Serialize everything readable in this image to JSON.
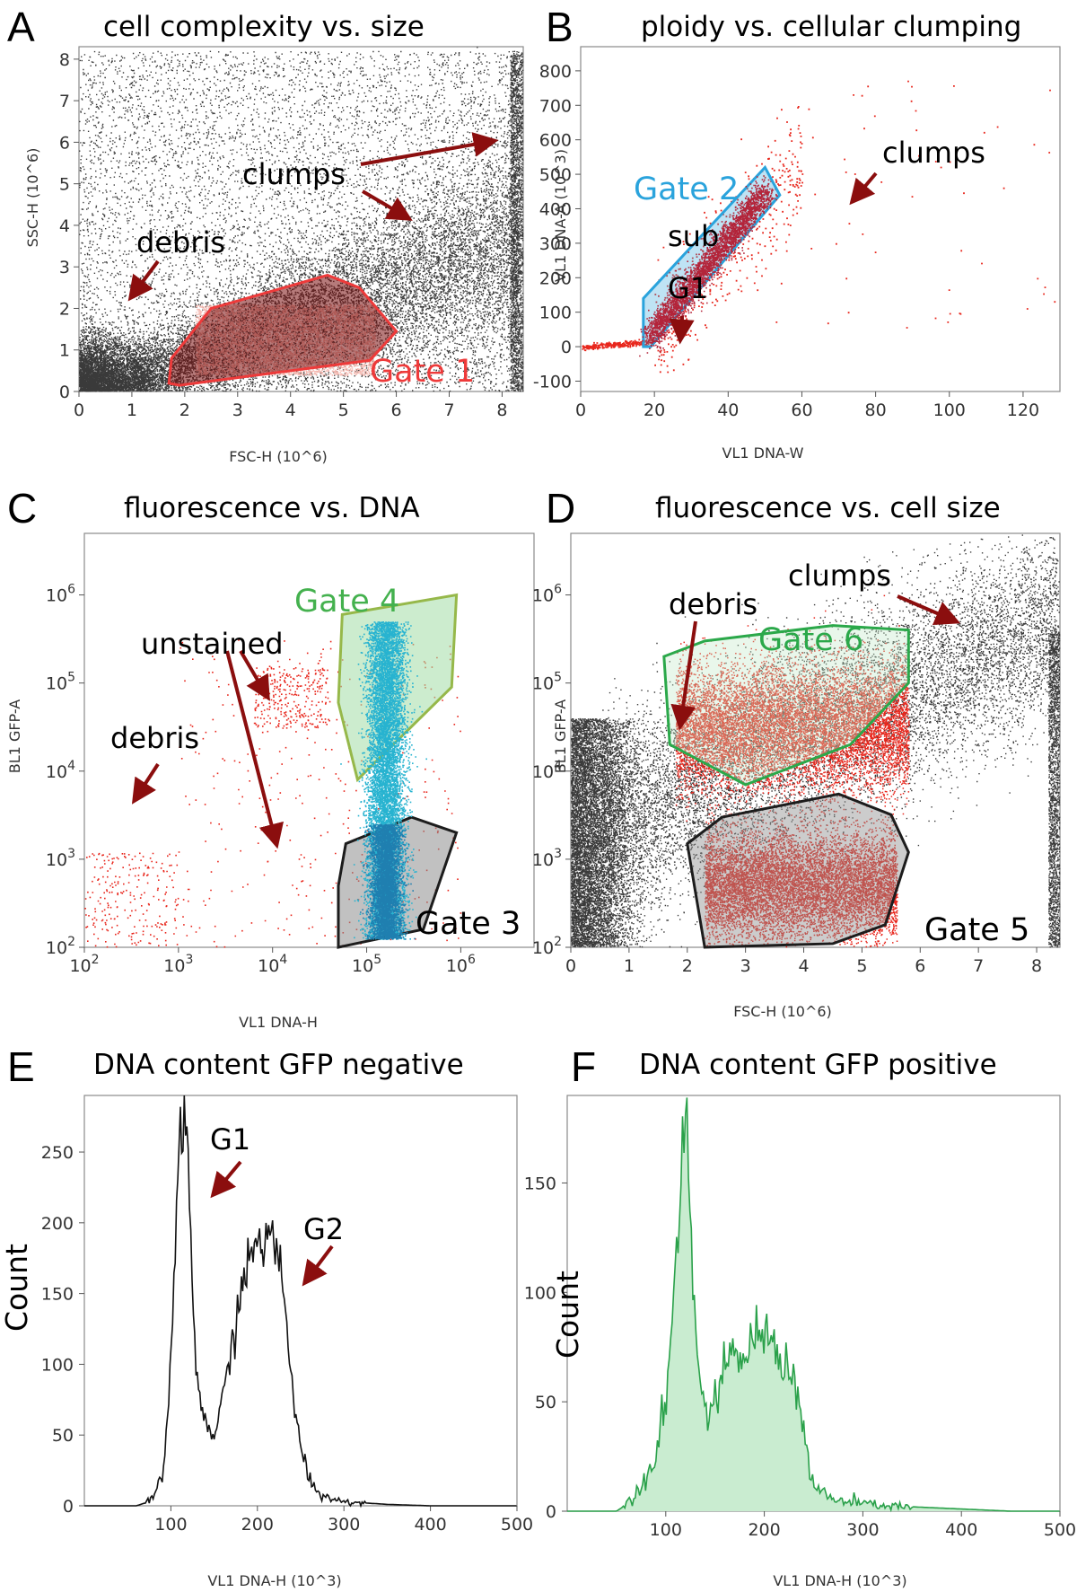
{
  "colors": {
    "dots": "#3a3a3a",
    "red_dots": "#e8261c",
    "gate1": "#ee3a3a",
    "gate2": "#2aa3dc",
    "gate3": "#1c1c1c",
    "gate4": "#96b84a",
    "gate4_text": "#44b14e",
    "gate6": "#2ba84a",
    "cyan_dots": "#27b3d0",
    "arrow": "#8b0e0e",
    "hist_black": "#111111",
    "hist_green": "#2aa14a",
    "hist_green_fill": "#c9ecd0"
  },
  "chart_data": [
    {
      "id": "A",
      "type": "scatter",
      "letter": "A",
      "title": "cell complexity vs. size",
      "xlabel": "FSC-H (10^6)",
      "ylabel": "SSC-H (10^6)",
      "xlim": [
        0,
        8.4
      ],
      "ylim": [
        0,
        8.3
      ],
      "x_ticks": [
        "0",
        "1",
        "2",
        "3",
        "4",
        "5",
        "6",
        "7",
        "8"
      ],
      "y_ticks": [
        "0",
        "1",
        "2",
        "3",
        "4",
        "5",
        "6",
        "7",
        "8"
      ],
      "annotations": [
        "debris",
        "clumps"
      ],
      "gates": [
        {
          "name": "Gate 1",
          "color": "gate1",
          "vertices": [
            [
              1.7,
              0.2
            ],
            [
              1.75,
              0.8
            ],
            [
              2.5,
              2.0
            ],
            [
              4.7,
              2.8
            ],
            [
              5.3,
              2.5
            ],
            [
              6.0,
              1.45
            ],
            [
              5.5,
              0.75
            ],
            [
              1.9,
              0.15
            ]
          ]
        }
      ]
    },
    {
      "id": "B",
      "type": "scatter",
      "letter": "B",
      "title": "ploidy vs. cellular clumping",
      "xlabel": "VL1 DNA-W",
      "ylabel": "VL1 DNA-A (10^3)",
      "xlim": [
        0,
        130
      ],
      "ylim": [
        -130,
        870
      ],
      "x_ticks": [
        "0",
        "20",
        "40",
        "60",
        "80",
        "100",
        "120"
      ],
      "y_ticks": [
        "-100",
        "0",
        "100",
        "200",
        "300",
        "400",
        "500",
        "600",
        "700",
        "800"
      ],
      "annotations": [
        "clumps",
        "sub",
        "G1"
      ],
      "gates": [
        {
          "name": "Gate 2",
          "color": "gate2",
          "vertices": [
            [
              17,
              0
            ],
            [
              17,
              140
            ],
            [
              50,
              520
            ],
            [
              54,
              440
            ],
            [
              19,
              0
            ]
          ]
        }
      ]
    },
    {
      "id": "C",
      "type": "scatter",
      "letter": "C",
      "title": "fluorescence vs. DNA",
      "xlabel": "VL1 DNA-H",
      "ylabel": "BL1 GFP-A",
      "x_scale": "log",
      "y_scale": "log",
      "xlim": [
        100,
        6000000
      ],
      "ylim": [
        100,
        5000000
      ],
      "x_ticks": [
        "10^2",
        "10^3",
        "10^4",
        "10^5",
        "10^6"
      ],
      "y_ticks": [
        "10^2",
        "10^3",
        "10^4",
        "10^5",
        "10^6"
      ],
      "annotations": [
        "unstained",
        "debris"
      ],
      "gates": [
        {
          "name": "Gate 4",
          "color": "gate4",
          "vertices": [
            [
              50000,
              60000
            ],
            [
              55000,
              600000
            ],
            [
              900000,
              1000000
            ],
            [
              800000,
              90000
            ],
            [
              80000,
              8000
            ]
          ]
        },
        {
          "name": "Gate 3",
          "color": "gate3",
          "vertices": [
            [
              50000,
              500
            ],
            [
              60000,
              1500
            ],
            [
              300000,
              3000
            ],
            [
              900000,
              2000
            ],
            [
              400000,
              160
            ],
            [
              50000,
              100
            ]
          ]
        }
      ]
    },
    {
      "id": "D",
      "type": "scatter",
      "letter": "D",
      "title": "fluorescence vs. cell size",
      "xlabel": "FSC-H (10^6)",
      "ylabel": "BL1 GFP-A",
      "y_scale": "log",
      "xlim": [
        0,
        8.4
      ],
      "ylim": [
        100,
        5000000
      ],
      "x_ticks": [
        "0",
        "1",
        "2",
        "3",
        "4",
        "5",
        "6",
        "7",
        "8"
      ],
      "y_ticks": [
        "10^2",
        "10^3",
        "10^4",
        "10^5",
        "10^6"
      ],
      "annotations": [
        "clumps",
        "debris"
      ],
      "gates": [
        {
          "name": "Gate 6",
          "color": "gate6",
          "vertices": [
            [
              1.6,
              200000
            ],
            [
              2.3,
              300000
            ],
            [
              4.5,
              450000
            ],
            [
              5.8,
              400000
            ],
            [
              5.8,
              100000
            ],
            [
              4.8,
              20000
            ],
            [
              3,
              7000
            ],
            [
              1.7,
              20000
            ]
          ]
        },
        {
          "name": "Gate 5",
          "color": "gate3",
          "vertices": [
            [
              2,
              1500
            ],
            [
              2.6,
              3000
            ],
            [
              4.6,
              5500
            ],
            [
              5.5,
              3200
            ],
            [
              5.8,
              1200
            ],
            [
              5.4,
              180
            ],
            [
              4.5,
              110
            ],
            [
              2.3,
              100
            ]
          ]
        }
      ]
    },
    {
      "id": "E",
      "type": "area",
      "letter": "E",
      "title": "DNA content GFP negative",
      "xlabel": "VL1 DNA-H (10^3)",
      "ylabel": "Count",
      "xlim": [
        0,
        500
      ],
      "ylim": [
        0,
        290
      ],
      "x_ticks": [
        "100",
        "200",
        "300",
        "400",
        "500"
      ],
      "y_ticks": [
        "0",
        "50",
        "100",
        "150",
        "200",
        "250"
      ],
      "annotations": [
        "G1",
        "G2"
      ],
      "series": [
        {
          "x": [
            0,
            60,
            70,
            80,
            90,
            95,
            100,
            105,
            110,
            115,
            118,
            120,
            123,
            126,
            130,
            135,
            140,
            145,
            150,
            155,
            160,
            165,
            170,
            180,
            190,
            200,
            210,
            215,
            220,
            225,
            230,
            235,
            240,
            245,
            250,
            260,
            270,
            280,
            300,
            350,
            400,
            450,
            500
          ],
          "values": [
            0,
            0,
            2,
            5,
            20,
            50,
            110,
            180,
            250,
            280,
            270,
            240,
            180,
            140,
            90,
            70,
            60,
            55,
            50,
            58,
            75,
            95,
            110,
            150,
            170,
            190,
            185,
            190,
            182,
            175,
            150,
            120,
            90,
            60,
            40,
            20,
            10,
            6,
            3,
            1,
            0,
            0,
            0
          ]
        }
      ]
    },
    {
      "id": "F",
      "type": "area",
      "letter": "F",
      "title": "DNA content GFP positive",
      "xlabel": "VL1 DNA-H (10^3)",
      "ylabel": "Count",
      "xlim": [
        0,
        500
      ],
      "ylim": [
        0,
        190
      ],
      "x_ticks": [
        "100",
        "200",
        "300",
        "400",
        "500"
      ],
      "y_ticks": [
        "0",
        "50",
        "100",
        "150"
      ],
      "series": [
        {
          "x": [
            0,
            50,
            60,
            70,
            80,
            90,
            100,
            105,
            110,
            115,
            118,
            120,
            122,
            125,
            128,
            132,
            136,
            140,
            145,
            150,
            155,
            160,
            170,
            180,
            190,
            200,
            210,
            220,
            230,
            240,
            245,
            250,
            260,
            270,
            290,
            310,
            350,
            400,
            450,
            500
          ],
          "values": [
            0,
            0,
            3,
            10,
            15,
            28,
            50,
            80,
            110,
            150,
            180,
            190,
            175,
            140,
            100,
            70,
            55,
            48,
            45,
            50,
            55,
            65,
            70,
            72,
            78,
            82,
            75,
            70,
            60,
            40,
            20,
            12,
            8,
            5,
            4,
            3,
            2,
            1,
            0,
            0
          ]
        }
      ]
    }
  ]
}
